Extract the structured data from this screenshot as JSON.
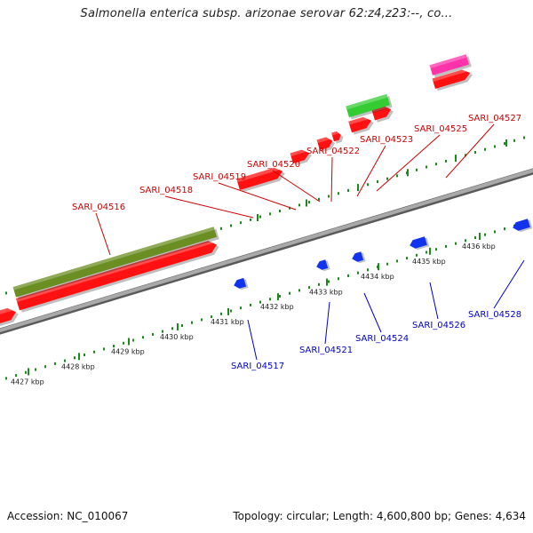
{
  "title": "Salmonella enterica subsp. arizonae serovar 62:z4,z23:--, co...",
  "footer": {
    "accession": "Accession: NC_010067",
    "stats": "Topology: circular; Length: 4,600,800 bp; Genes: 4,634"
  },
  "colors": {
    "forward_label": "#cc0000",
    "reverse_label": "#0000cc",
    "backbone": "#8c8c8c",
    "tick": "#1a8a1a",
    "cds_red": "#ff1111",
    "cds_blue": "#1133ee",
    "olive": "#6b8e23",
    "green": "#33cc33",
    "magenta": "#ff33aa"
  },
  "ticks": [
    {
      "label": "4427 kbp"
    },
    {
      "label": "4428 kbp"
    },
    {
      "label": "4429 kbp"
    },
    {
      "label": "4430 kbp"
    },
    {
      "label": "4431 kbp"
    },
    {
      "label": "4432 kbp"
    },
    {
      "label": "4433 kbp"
    },
    {
      "label": "4434 kbp"
    },
    {
      "label": "4435 kbp"
    },
    {
      "label": "4436 kbp"
    }
  ],
  "forward_genes": [
    {
      "label": "SARI_04516"
    },
    {
      "label": "SARI_04518"
    },
    {
      "label": "SARI_04519"
    },
    {
      "label": "SARI_04520"
    },
    {
      "label": "SARI_04522"
    },
    {
      "label": "SARI_04523"
    },
    {
      "label": "SARI_04525"
    },
    {
      "label": "SARI_04527"
    }
  ],
  "reverse_genes": [
    {
      "label": "SARI_04517"
    },
    {
      "label": "SARI_04521"
    },
    {
      "label": "SARI_04524"
    },
    {
      "label": "SARI_04526"
    },
    {
      "label": "SARI_04528"
    }
  ]
}
